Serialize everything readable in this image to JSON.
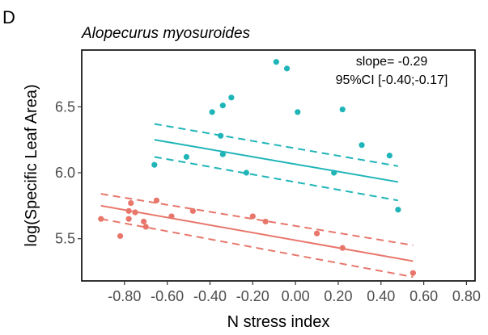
{
  "panel_label": "D",
  "chart_data": {
    "type": "scatter",
    "title": "Alopecurus myosuroides",
    "xlabel": "N stress index",
    "ylabel": "log(Specific Leaf Area)",
    "xlim": [
      -1.0,
      0.84
    ],
    "ylim": [
      5.18,
      6.93
    ],
    "x_ticks": [
      -0.8,
      -0.6,
      -0.4,
      -0.2,
      0.0,
      0.2,
      0.4,
      0.6,
      0.8
    ],
    "x_tick_labels": [
      "-0.80",
      "-0.60",
      "-0.40",
      "-0.20",
      "0.00",
      "0.20",
      "0.40",
      "0.60",
      "0.80"
    ],
    "y_ticks": [
      5.5,
      6.0,
      6.5
    ],
    "y_tick_labels": [
      "5.5",
      "6.0",
      "6.5"
    ],
    "grid": false,
    "legend": "none",
    "annotations": [
      "slope= -0.29",
      "95%CI [-0.40;-0.17]"
    ],
    "series": [
      {
        "color": "#1fb5b8",
        "points": [
          [
            -0.66,
            6.06
          ],
          [
            -0.51,
            6.12
          ],
          [
            -0.39,
            6.46
          ],
          [
            -0.34,
            6.51
          ],
          [
            -0.3,
            6.57
          ],
          [
            -0.35,
            6.28
          ],
          [
            -0.34,
            6.14
          ],
          [
            -0.23,
            6.0
          ],
          [
            -0.09,
            6.84
          ],
          [
            -0.04,
            6.79
          ],
          [
            0.01,
            6.46
          ],
          [
            0.18,
            6.0
          ],
          [
            0.22,
            6.48
          ],
          [
            0.31,
            6.21
          ],
          [
            0.44,
            6.13
          ],
          [
            0.48,
            5.72
          ]
        ],
        "fit": [
          [
            -0.66,
            6.25
          ],
          [
            0.48,
            5.93
          ]
        ],
        "ci_upper": [
          [
            -0.66,
            6.37
          ],
          [
            0.48,
            6.05
          ]
        ],
        "ci_lower": [
          [
            -0.66,
            6.12
          ],
          [
            0.48,
            5.79
          ]
        ]
      },
      {
        "color": "#e8766b",
        "points": [
          [
            -0.91,
            5.65
          ],
          [
            -0.82,
            5.52
          ],
          [
            -0.78,
            5.71
          ],
          [
            -0.78,
            5.65
          ],
          [
            -0.77,
            5.77
          ],
          [
            -0.75,
            5.7
          ],
          [
            -0.71,
            5.63
          ],
          [
            -0.7,
            5.59
          ],
          [
            -0.65,
            5.79
          ],
          [
            -0.58,
            5.67
          ],
          [
            -0.48,
            5.71
          ],
          [
            -0.2,
            5.67
          ],
          [
            -0.14,
            5.63
          ],
          [
            0.1,
            5.54
          ],
          [
            0.22,
            5.43
          ],
          [
            0.55,
            5.24
          ]
        ],
        "fit": [
          [
            -0.91,
            5.75
          ],
          [
            0.55,
            5.33
          ]
        ],
        "ci_upper": [
          [
            -0.91,
            5.84
          ],
          [
            0.55,
            5.45
          ]
        ],
        "ci_lower": [
          [
            -0.91,
            5.65
          ],
          [
            0.55,
            5.21
          ]
        ]
      }
    ]
  }
}
